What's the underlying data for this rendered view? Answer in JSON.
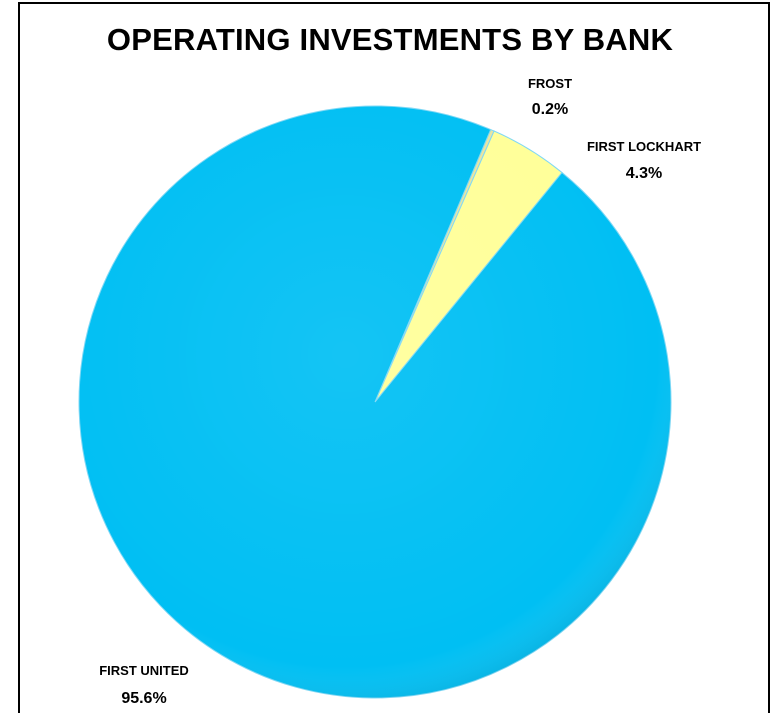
{
  "chart_data": {
    "type": "pie",
    "title": "OPERATING INVESTMENTS BY BANK",
    "slices": [
      {
        "label": "FROST",
        "value": 0.2,
        "display": "0.2%",
        "color": "#e8e5a0"
      },
      {
        "label": "FIRST LOCKHART",
        "value": 4.3,
        "display": "4.3%",
        "color": "#ffff99"
      },
      {
        "label": "FIRST UNITED",
        "value": 95.6,
        "display": "95.6%",
        "color": "#00bff3"
      }
    ],
    "start_angle_deg": 23,
    "direction": "clockwise",
    "legend": "none",
    "labels": "outside"
  }
}
